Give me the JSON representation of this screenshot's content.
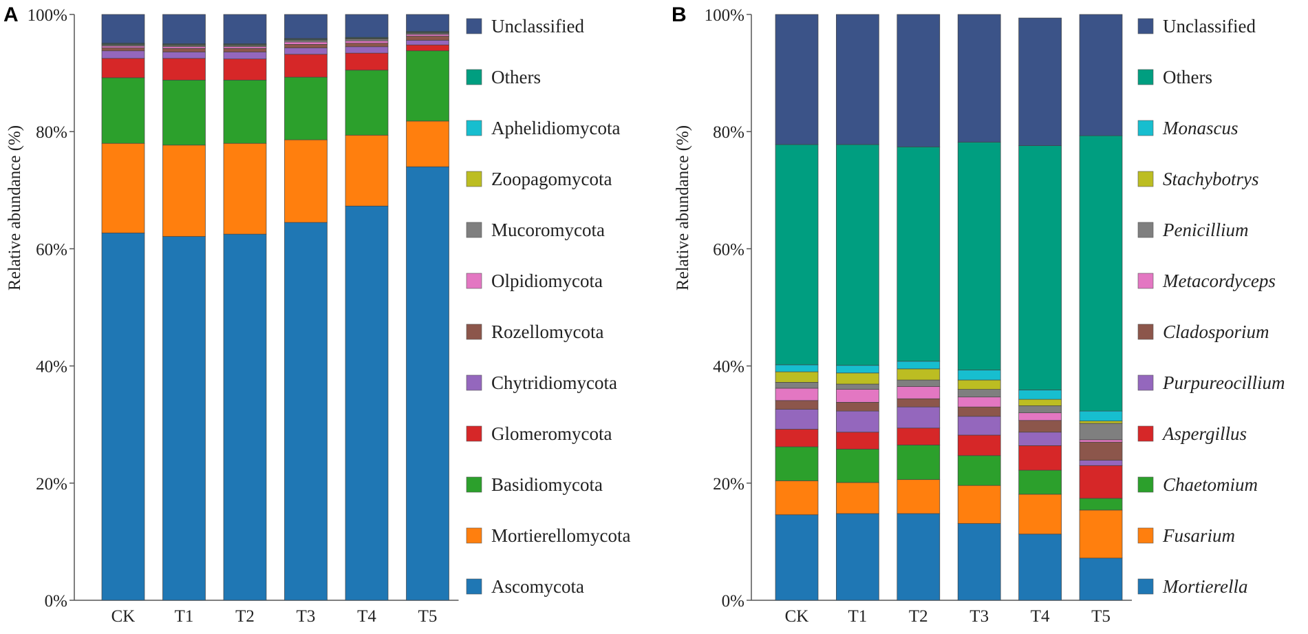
{
  "chart_data": [
    {
      "type": "bar",
      "stacked": true,
      "panel_label": "A",
      "title": "",
      "xlabel": "",
      "ylabel": "Relative abundance (%)",
      "ylim": [
        0,
        100
      ],
      "y_ticks": [
        "0%",
        "20%",
        "40%",
        "60%",
        "80%",
        "100%"
      ],
      "categories": [
        "CK",
        "T1",
        "T2",
        "T3",
        "T4",
        "T5"
      ],
      "legend_italic": false,
      "series": [
        {
          "name": "Ascomycota",
          "color": "#1f77b4",
          "values": [
            62.7,
            62.1,
            62.5,
            64.5,
            67.3,
            74.0
          ]
        },
        {
          "name": "Mortierellomycota",
          "color": "#ff7f0e",
          "values": [
            15.3,
            15.6,
            15.5,
            14.1,
            12.1,
            7.8
          ]
        },
        {
          "name": "Basidiomycota",
          "color": "#2ca02c",
          "values": [
            11.2,
            11.1,
            10.8,
            10.7,
            11.1,
            12.0
          ]
        },
        {
          "name": "Glomeromycota",
          "color": "#d62728",
          "values": [
            3.3,
            3.7,
            3.6,
            3.9,
            2.9,
            1.0
          ]
        },
        {
          "name": "Chytridiomycota",
          "color": "#9467bd",
          "values": [
            1.3,
            1.1,
            1.2,
            1.1,
            1.1,
            0.8
          ]
        },
        {
          "name": "Rozellomycota",
          "color": "#8c564b",
          "values": [
            0.5,
            0.6,
            0.6,
            0.6,
            0.6,
            0.7
          ]
        },
        {
          "name": "Olpidiomycota",
          "color": "#e377c2",
          "values": [
            0.3,
            0.3,
            0.3,
            0.4,
            0.4,
            0.3
          ]
        },
        {
          "name": "Mucoromycota",
          "color": "#7f7f7f",
          "values": [
            0.2,
            0.2,
            0.2,
            0.3,
            0.3,
            0.2
          ]
        },
        {
          "name": "Zoopagomycota",
          "color": "#bcbd22",
          "values": [
            0.1,
            0.1,
            0.1,
            0.1,
            0.1,
            0.1
          ]
        },
        {
          "name": "Aphelidiomycota",
          "color": "#17becf",
          "values": [
            0.1,
            0.1,
            0.1,
            0.1,
            0.1,
            0.1
          ]
        },
        {
          "name": "Others",
          "color": "#009e80",
          "values": [
            0.1,
            0.1,
            0.1,
            0.1,
            0.1,
            0.1
          ]
        },
        {
          "name": "Unclassified",
          "color": "#3b5388",
          "values": [
            4.9,
            5.0,
            5.0,
            4.1,
            3.9,
            2.9
          ]
        }
      ]
    },
    {
      "type": "bar",
      "stacked": true,
      "panel_label": "B",
      "title": "",
      "xlabel": "",
      "ylabel": "Relative abundance (%)",
      "ylim": [
        0,
        100
      ],
      "y_ticks": [
        "0%",
        "20%",
        "40%",
        "60%",
        "80%",
        "100%"
      ],
      "categories": [
        "CK",
        "T1",
        "T2",
        "T3",
        "T4",
        "T5"
      ],
      "legend_italic": true,
      "series": [
        {
          "name": "Mortierella",
          "color": "#1f77b4",
          "values": [
            14.6,
            14.8,
            14.8,
            13.1,
            11.3,
            7.2
          ]
        },
        {
          "name": "Fusarium",
          "color": "#ff7f0e",
          "values": [
            5.8,
            5.3,
            5.8,
            6.5,
            6.8,
            8.2
          ]
        },
        {
          "name": "Chaetomium",
          "color": "#2ca02c",
          "values": [
            5.8,
            5.7,
            5.9,
            5.1,
            4.1,
            2.0
          ]
        },
        {
          "name": "Aspergillus",
          "color": "#d62728",
          "values": [
            3.0,
            2.9,
            2.9,
            3.5,
            4.2,
            5.6
          ]
        },
        {
          "name": "Purpureocillium",
          "color": "#9467bd",
          "values": [
            3.4,
            3.6,
            3.6,
            3.2,
            2.3,
            0.9
          ]
        },
        {
          "name": "Cladosporium",
          "color": "#8c564b",
          "values": [
            1.5,
            1.5,
            1.4,
            1.6,
            2.0,
            3.1
          ]
        },
        {
          "name": "Metacordyceps",
          "color": "#e377c2",
          "values": [
            2.1,
            2.2,
            2.1,
            1.7,
            1.3,
            0.4
          ]
        },
        {
          "name": "Penicillium",
          "color": "#7f7f7f",
          "values": [
            1.0,
            0.9,
            1.1,
            1.3,
            1.2,
            2.8
          ]
        },
        {
          "name": "Stachybotrys",
          "color": "#bcbd22",
          "values": [
            1.8,
            1.9,
            1.9,
            1.6,
            1.1,
            0.4
          ]
        },
        {
          "name": "Monascus",
          "color": "#17becf",
          "values": [
            1.2,
            1.3,
            1.3,
            1.7,
            1.6,
            1.7
          ]
        },
        {
          "name": "Others",
          "color": "#009e80",
          "values": [
            37.6,
            37.7,
            36.6,
            38.9,
            41.7,
            47.0
          ]
        },
        {
          "name": "Unclassified",
          "color": "#3b5388",
          "values": [
            22.2,
            22.2,
            22.6,
            21.8,
            21.8,
            20.7
          ]
        }
      ]
    }
  ]
}
